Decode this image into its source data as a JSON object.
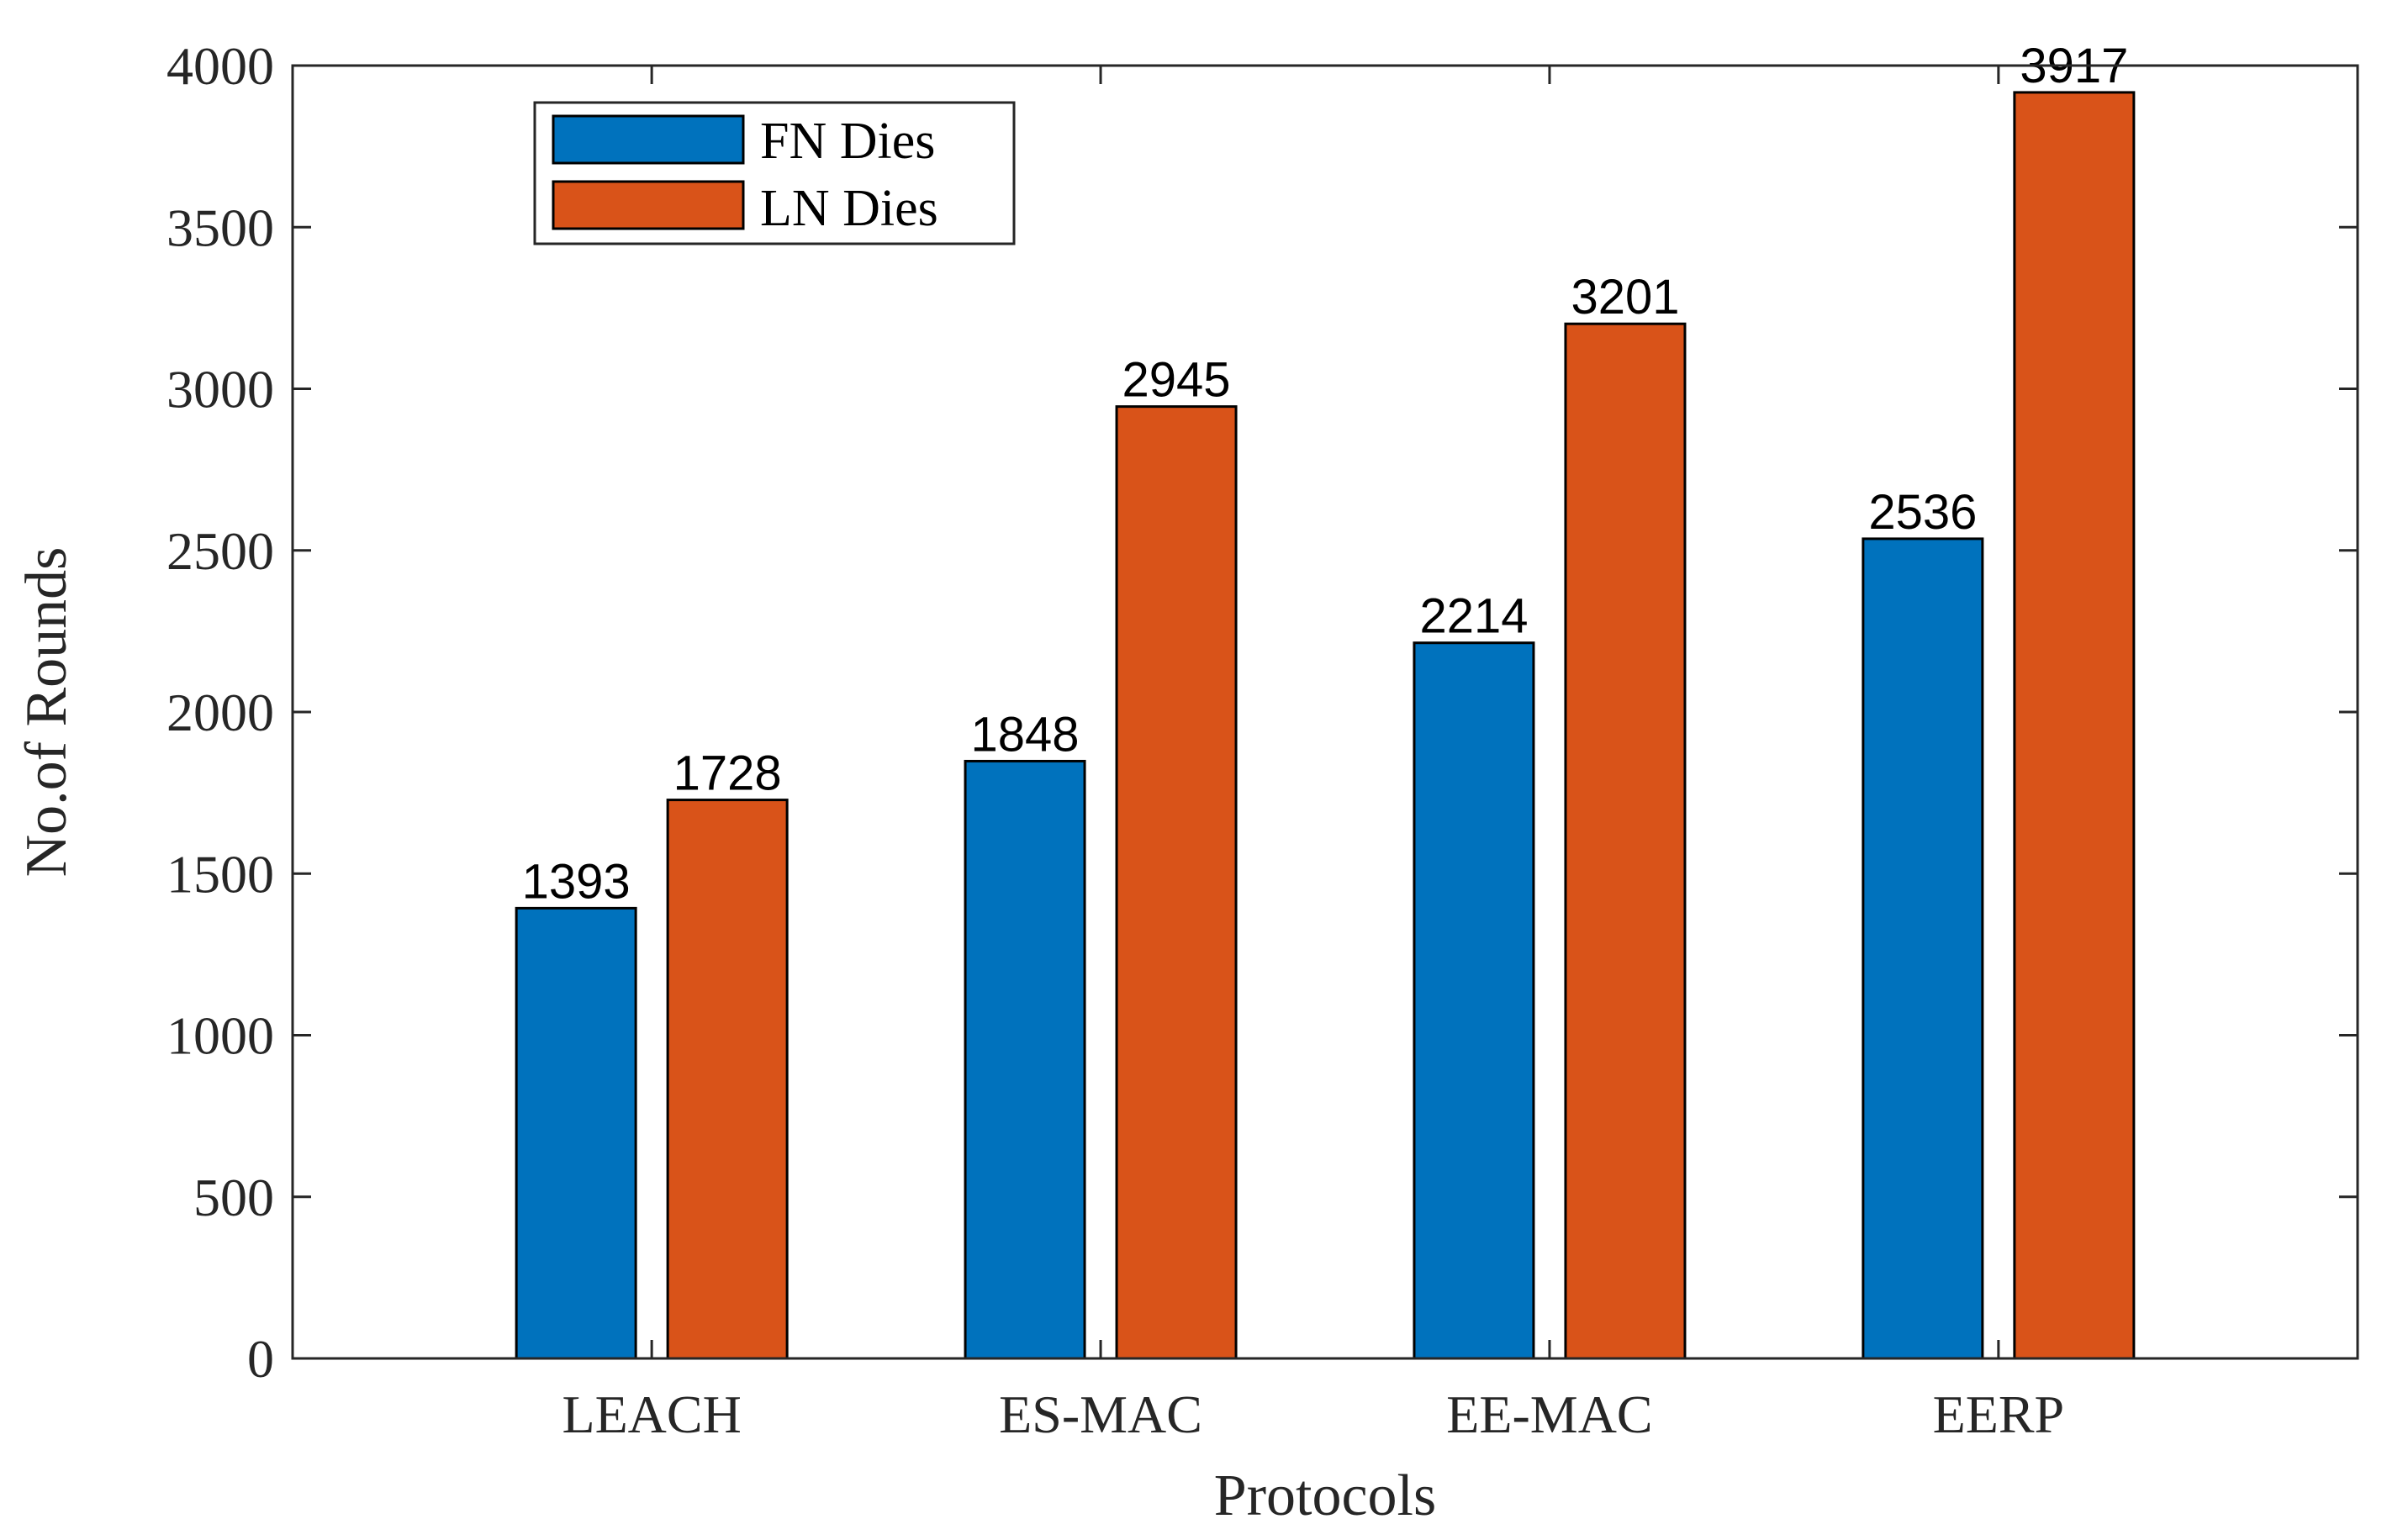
{
  "chart_data": {
    "type": "bar",
    "title": "",
    "xlabel": "Protocols",
    "ylabel": "No.of Rounds",
    "categories": [
      "LEACH",
      "ES-MAC",
      "EE-MAC",
      "EERP"
    ],
    "series": [
      {
        "name": "FN Dies",
        "values": [
          1393,
          1848,
          2214,
          2536
        ],
        "color": "#0072BD"
      },
      {
        "name": "LN Dies",
        "values": [
          1728,
          2945,
          3201,
          3917
        ],
        "color": "#D95319"
      }
    ],
    "ylim": [
      0,
      4000
    ],
    "yticks": [
      0,
      500,
      1000,
      1500,
      2000,
      2500,
      3000,
      3500,
      4000
    ],
    "legend_position": "top-left",
    "grid": false
  }
}
